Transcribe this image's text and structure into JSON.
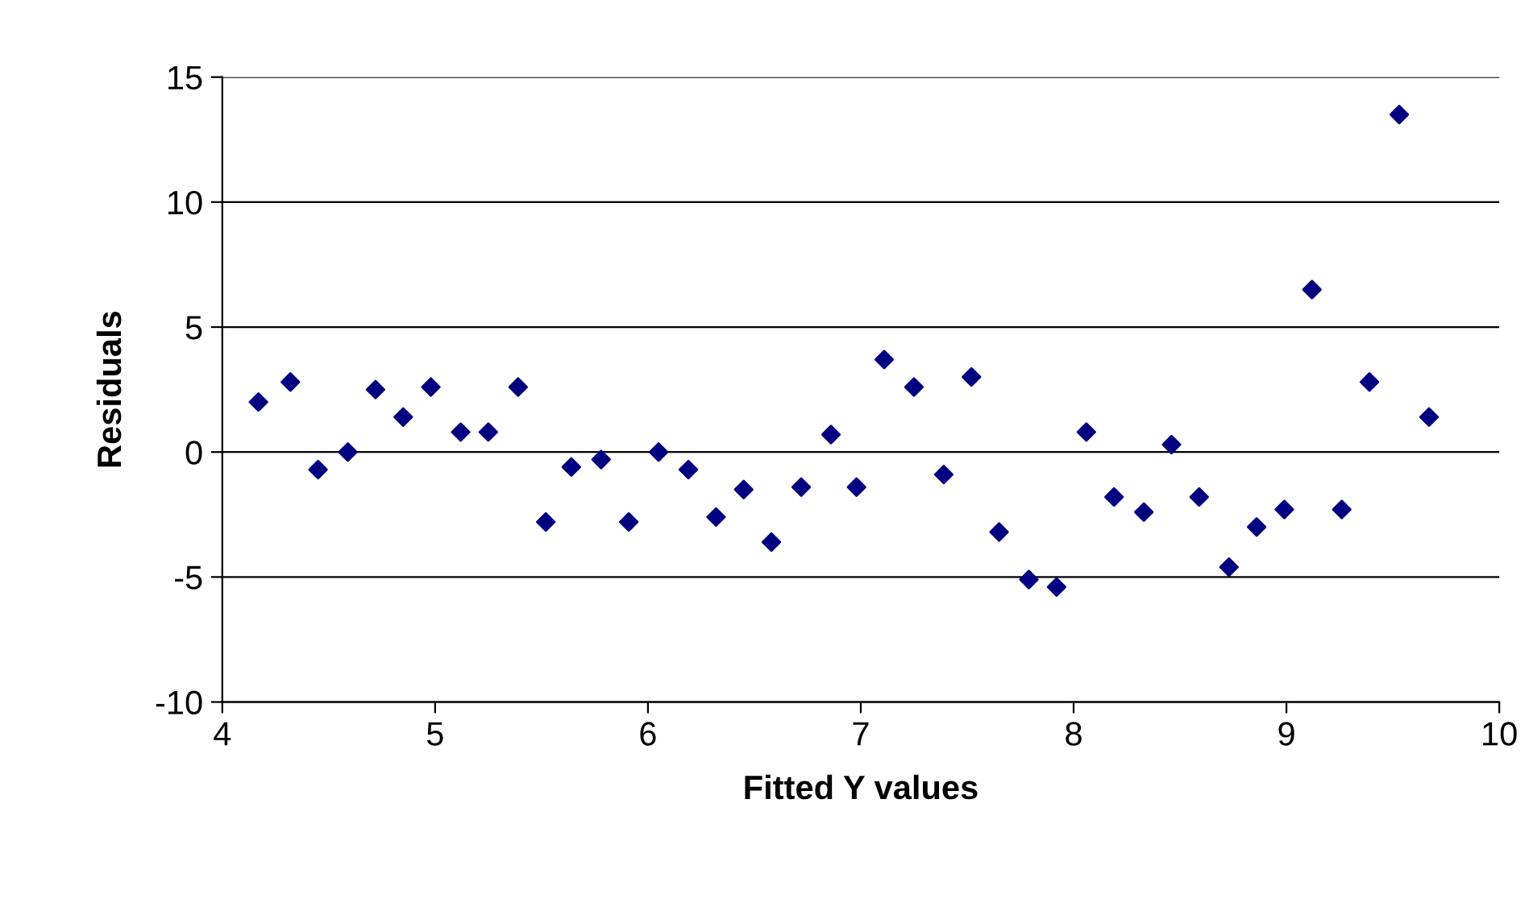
{
  "chart_data": {
    "type": "scatter",
    "xlabel": "Fitted Y values",
    "ylabel": "Residuals",
    "x": [
      4.17,
      4.32,
      4.45,
      4.59,
      4.72,
      4.85,
      4.98,
      5.12,
      5.25,
      5.39,
      5.52,
      5.64,
      5.78,
      5.91,
      6.05,
      6.19,
      6.32,
      6.45,
      6.58,
      6.72,
      6.86,
      6.98,
      7.11,
      7.25,
      7.39,
      7.52,
      7.65,
      7.79,
      7.92,
      8.06,
      8.19,
      8.33,
      8.46,
      8.59,
      8.73,
      8.86,
      8.99,
      9.12,
      9.26,
      9.39,
      9.53,
      9.67
    ],
    "series": [
      {
        "color": "#000080",
        "values": [
          2.0,
          2.8,
          -0.7,
          0.0,
          2.5,
          1.4,
          2.6,
          0.8,
          0.8,
          2.6,
          -2.8,
          -0.6,
          -0.3,
          -2.8,
          0.0,
          -0.7,
          -2.6,
          -1.5,
          -3.6,
          -1.4,
          0.7,
          -1.4,
          3.7,
          2.6,
          -0.9,
          3.0,
          -3.2,
          -5.1,
          -5.4,
          0.8,
          -1.8,
          -2.4,
          0.3,
          -1.8,
          -4.6,
          -3.0,
          -2.3,
          6.5,
          -2.3,
          2.8,
          13.5,
          1.4
        ]
      }
    ],
    "xlim": [
      4,
      10
    ],
    "xticks": [
      4,
      5,
      6,
      7,
      8,
      9,
      10
    ],
    "ylim": [
      -10,
      15
    ],
    "yticks": [
      -10,
      -5,
      0,
      5,
      10,
      15
    ],
    "grid": "y",
    "marker": "diamond",
    "legend": false
  }
}
